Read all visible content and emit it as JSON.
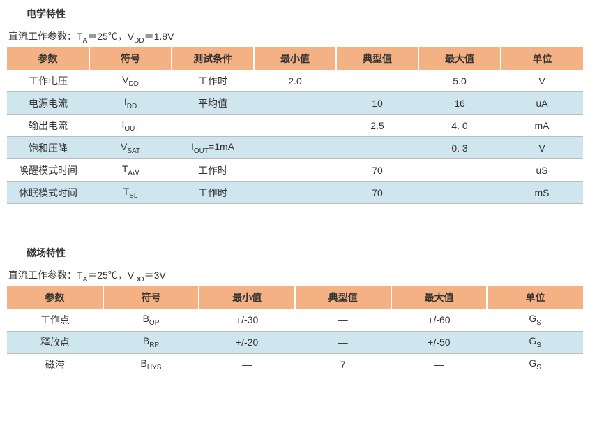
{
  "section1": {
    "title": "电学特性",
    "subtitle_prefix": "直流工作参数：T",
    "subtitle_sub1": "A",
    "subtitle_mid": "＝25℃，V",
    "subtitle_sub2": "DD",
    "subtitle_end": "＝1.8V",
    "columns": [
      "参数",
      "符号",
      "测试条件",
      "最小值",
      "典型值",
      "最大值",
      "单位"
    ],
    "rows": [
      {
        "param": "工作电压",
        "sym": "V",
        "sub": "DD",
        "cond": "工作时",
        "min": "2.0",
        "typ": "",
        "max": "5.0",
        "unit": "V"
      },
      {
        "param": "电源电流",
        "sym": "I",
        "sub": "DD",
        "cond": "平均值",
        "min": "",
        "typ": "10",
        "max": "16",
        "unit": "uA"
      },
      {
        "param": "输出电流",
        "sym": "I",
        "sub": "OUT",
        "cond": "",
        "min": "",
        "typ": "2.5",
        "max": "4. 0",
        "unit": "mA"
      },
      {
        "param": "饱和压降",
        "sym": "V",
        "sub": "SAT",
        "cond": "",
        "cond_sym": "I",
        "cond_sub": "OUT",
        "cond_end": "=1mA",
        "min": "",
        "typ": "",
        "max": "0. 3",
        "unit": "V"
      },
      {
        "param": "唤醒模式时间",
        "sym": "T",
        "sub": "AW",
        "cond": "工作时",
        "min": "",
        "typ": "70",
        "max": "",
        "unit": "uS"
      },
      {
        "param": "休眠模式时间",
        "sym": "T",
        "sub": "SL",
        "cond": "工作时",
        "min": "",
        "typ": "70",
        "max": "",
        "unit": "mS"
      }
    ]
  },
  "section2": {
    "title": "磁场特性",
    "subtitle_prefix": "直流工作参数：T",
    "subtitle_sub1": "A",
    "subtitle_mid": "＝25℃，V",
    "subtitle_sub2": "DD",
    "subtitle_end": "＝3V",
    "columns": [
      "参数",
      "符号",
      "最小值",
      "典型值",
      "最大值",
      "单位"
    ],
    "rows": [
      {
        "param": "工作点",
        "sym": "B",
        "sub": "OP",
        "min": "+/-30",
        "typ": "—",
        "max": "+/-60",
        "unit_sym": "G",
        "unit_sub": "S"
      },
      {
        "param": "释放点",
        "sym": "B",
        "sub": "RP",
        "min": "+/-20",
        "typ": "—",
        "max": "+/-50",
        "unit_sym": "G",
        "unit_sub": "S"
      },
      {
        "param": "磁滞",
        "sym": "B",
        "sub": "HYS",
        "min": "—",
        "typ": "7",
        "max": "—",
        "unit_sym": "G",
        "unit_sub": "S"
      }
    ]
  },
  "style": {
    "header_bg": "#f4b183",
    "row_odd_bg": "#ffffff",
    "row_even_bg": "#cfe6ef",
    "text_color": "#333333",
    "border_color": "#bcbcbc",
    "fontsize": 14
  }
}
